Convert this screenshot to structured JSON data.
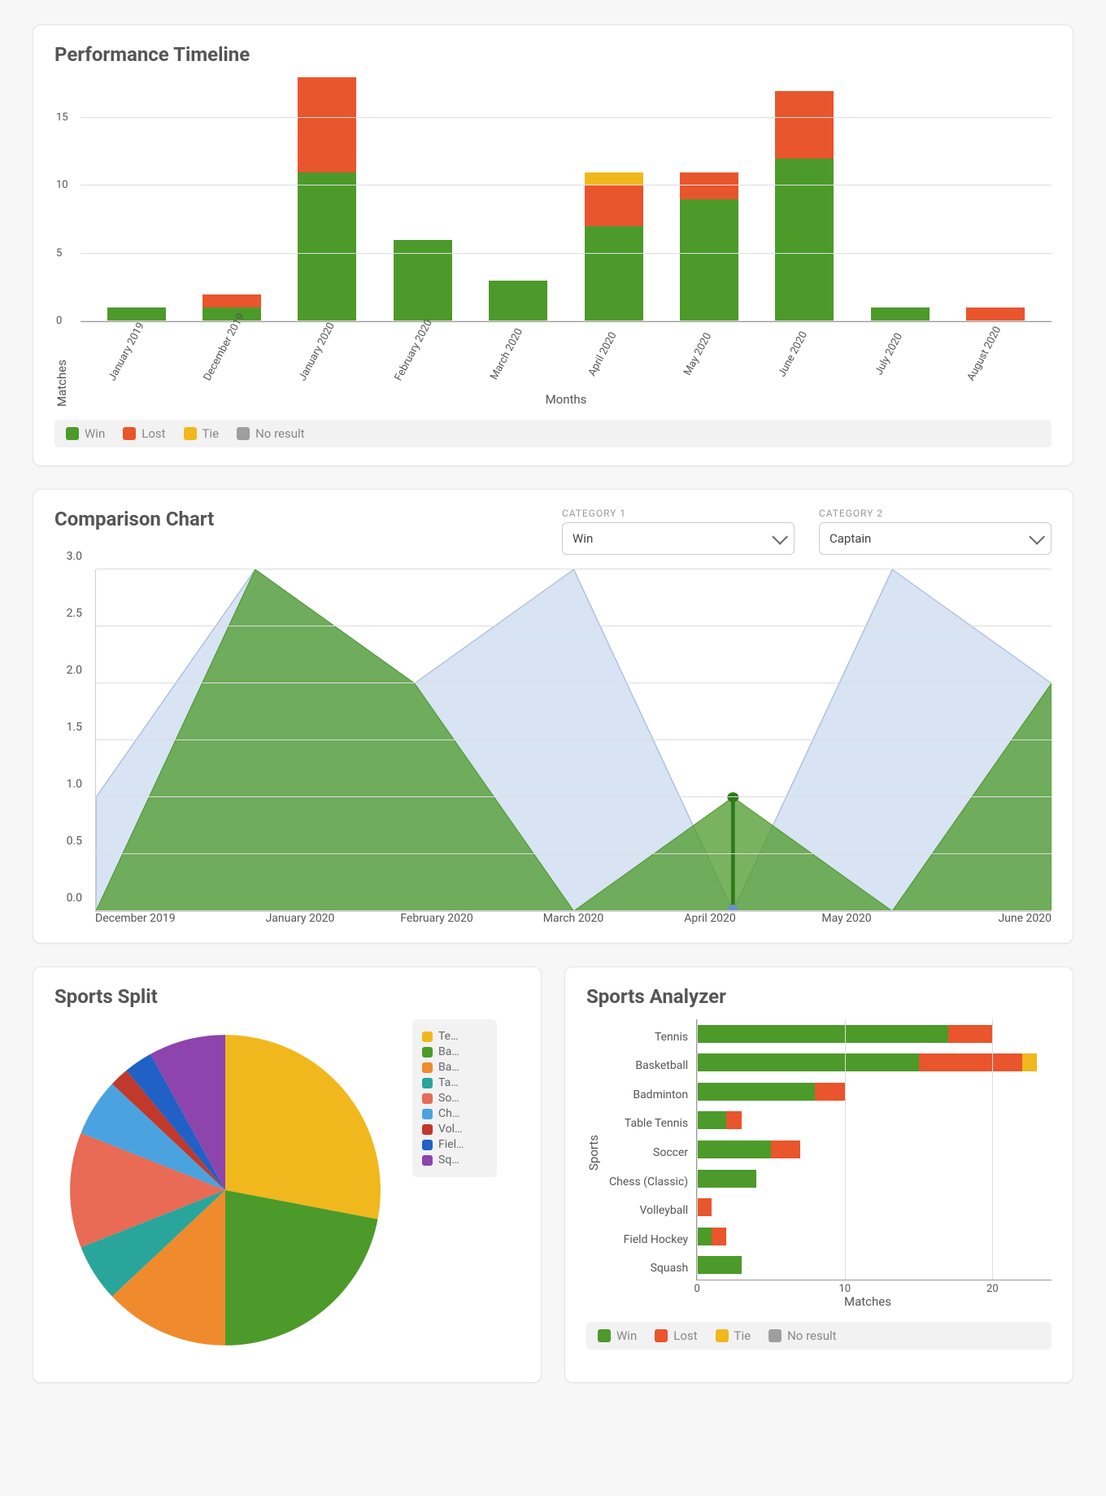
{
  "colors": {
    "win": "#4c9a2a",
    "lost": "#e9552c",
    "tie": "#f0b81d",
    "noresult": "#9e9e9e",
    "grid": "#dddddd",
    "area_secondary": "#d8e3f3",
    "area_secondary_stroke": "#9fb6d9",
    "panel_bg": "#ffffff",
    "text": "#444444"
  },
  "timeline": {
    "title": "Performance Timeline",
    "ylabel": "Matches",
    "xlabel": "Months",
    "ymax": 18,
    "yticks": [
      0,
      5,
      10,
      15
    ],
    "categories": [
      "January 2019",
      "December 2019",
      "January 2020",
      "February 2020",
      "March 2020",
      "April 2020",
      "May 2020",
      "June 2020",
      "July 2020",
      "August 2020"
    ],
    "series": {
      "win": [
        1,
        1,
        11,
        6,
        3,
        7,
        9,
        12,
        1,
        0
      ],
      "lost": [
        0,
        1,
        7,
        0,
        0,
        3,
        2,
        5,
        0,
        1
      ],
      "tie": [
        0,
        0,
        0,
        0,
        0,
        1,
        0,
        0,
        0,
        0
      ],
      "noresult": [
        0,
        0,
        0,
        0,
        0,
        0,
        0,
        0,
        0,
        0
      ]
    },
    "legend": [
      {
        "key": "win",
        "label": "Win",
        "color": "#4c9a2a"
      },
      {
        "key": "lost",
        "label": "Lost",
        "color": "#e9552c"
      },
      {
        "key": "tie",
        "label": "Tie",
        "color": "#f0b81d"
      },
      {
        "key": "noresult",
        "label": "No result",
        "color": "#9e9e9e"
      }
    ]
  },
  "comparison": {
    "title": "Comparison Chart",
    "selectors": {
      "cat1": {
        "label": "CATEGORY 1",
        "value": "Win"
      },
      "cat2": {
        "label": "CATEGORY 2",
        "value": "Captain"
      }
    },
    "categories": [
      "December 2019",
      "January 2020",
      "February 2020",
      "March 2020",
      "April 2020",
      "May 2020",
      "June 2020"
    ],
    "ymax": 3,
    "yticks": [
      0.0,
      0.5,
      1.0,
      1.5,
      2.0,
      2.5,
      3.0
    ],
    "series": {
      "win": {
        "values": [
          0,
          3,
          2,
          0,
          1,
          0,
          2
        ],
        "fill": "#4c9a2a",
        "opacity": 0.75
      },
      "captain": {
        "values": [
          1,
          3,
          2,
          3,
          0,
          3,
          2
        ],
        "fill": "#d8e3f3",
        "opacity": 1,
        "stroke": "#9fb6d9"
      }
    },
    "marker": {
      "index": 4,
      "value": 1,
      "color": "#2f7a1d",
      "secondary_color": "#6f8ecb"
    }
  },
  "sportsSplit": {
    "title": "Sports Split",
    "slices": [
      {
        "label": "Te…",
        "full": "Tennis",
        "value": 28,
        "color": "#f0b81d"
      },
      {
        "label": "Ba…",
        "full": "Basketball",
        "value": 22,
        "color": "#4c9a2a"
      },
      {
        "label": "Ba…",
        "full": "Badminton",
        "value": 13,
        "color": "#ef8b2c"
      },
      {
        "label": "Ta…",
        "full": "Table Tennis",
        "value": 6,
        "color": "#2aa59b"
      },
      {
        "label": "So…",
        "full": "Soccer",
        "value": 12,
        "color": "#e96a55"
      },
      {
        "label": "Ch…",
        "full": "Chess",
        "value": 6,
        "color": "#4aa3df"
      },
      {
        "label": "Vol…",
        "full": "Volleyball",
        "value": 2,
        "color": "#c0392b"
      },
      {
        "label": "Fiel…",
        "full": "Field Hockey",
        "value": 3,
        "color": "#2160c4"
      },
      {
        "label": "Sq…",
        "full": "Squash",
        "value": 8,
        "color": "#8e44ad"
      }
    ]
  },
  "sportsAnalyzer": {
    "title": "Sports Analyzer",
    "ylabel": "Sports",
    "xlabel": "Matches",
    "xmax": 24,
    "xticks": [
      0,
      10,
      20
    ],
    "sports": [
      "Tennis",
      "Basketball",
      "Badminton",
      "Table Tennis",
      "Soccer",
      "Chess (Classic)",
      "Volleyball",
      "Field Hockey",
      "Squash"
    ],
    "series": {
      "win": [
        17,
        15,
        8,
        2,
        5,
        4,
        0,
        1,
        3
      ],
      "lost": [
        3,
        7,
        2,
        1,
        2,
        0,
        1,
        1,
        0
      ],
      "tie": [
        0,
        1,
        0,
        0,
        0,
        0,
        0,
        0,
        0
      ],
      "noresult": [
        0,
        0,
        0,
        0,
        0,
        0,
        0,
        0,
        0
      ]
    },
    "legend": [
      {
        "label": "Win",
        "color": "#4c9a2a"
      },
      {
        "label": "Lost",
        "color": "#e9552c"
      },
      {
        "label": "Tie",
        "color": "#f0b81d"
      },
      {
        "label": "No result",
        "color": "#9e9e9e"
      }
    ]
  }
}
